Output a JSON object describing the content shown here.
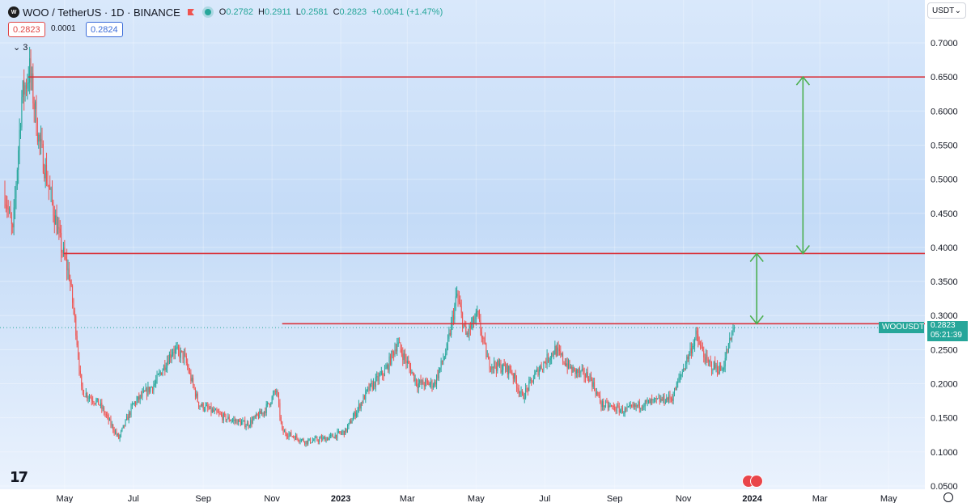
{
  "header": {
    "symbol_title": "WOO / TetherUS · 1D · BINANCE",
    "ohlc": {
      "o_label": "O",
      "o": "0.2782",
      "h_label": "H",
      "h": "0.2911",
      "l_label": "L",
      "l": "0.2581",
      "c_label": "C",
      "c": "0.2823",
      "change": "+0.0041 (+1.47%)"
    },
    "bid": "0.2823",
    "spread": "0.0001",
    "ask": "0.2824",
    "indicators_toggle": "⌄ 3",
    "logo_text": "𝟭𝟳"
  },
  "price_axis": {
    "currency": "USDT",
    "ticks": [
      "0.7000",
      "0.6500",
      "0.6000",
      "0.5500",
      "0.5000",
      "0.4500",
      "0.4000",
      "0.3500",
      "0.3000",
      "0.2500",
      "0.2000",
      "0.1500",
      "0.1000",
      "0.0500"
    ],
    "last_symbol": "WOOUSDT",
    "last_price": "0.2823",
    "countdown": "05:21:39"
  },
  "time_axis": {
    "ticks": [
      "May",
      "Jul",
      "Sep",
      "Nov",
      "2023",
      "Mar",
      "May",
      "Jul",
      "Sep",
      "Nov",
      "2024",
      "Mar",
      "May"
    ]
  },
  "colors": {
    "up": "#26a69a",
    "down": "#ef5350",
    "level_line": "#d9343d",
    "arrow": "#4caf50"
  },
  "chart_data": {
    "type": "candlestick",
    "title": "WOO / TetherUS · 1D · BINANCE",
    "xlabel": "",
    "ylabel": "",
    "ylim": [
      0.05,
      0.72
    ],
    "x_range": [
      "2022-03-09",
      "2024-05-31"
    ],
    "grid": true,
    "anchors": [
      [
        "2022-03-09",
        0.48
      ],
      [
        "2022-03-16",
        0.42
      ],
      [
        "2022-03-24",
        0.62
      ],
      [
        "2022-03-31",
        0.66
      ],
      [
        "2022-04-08",
        0.56
      ],
      [
        "2022-04-18",
        0.48
      ],
      [
        "2022-04-28",
        0.4
      ],
      [
        "2022-05-05",
        0.36
      ],
      [
        "2022-05-11",
        0.28
      ],
      [
        "2022-05-16",
        0.19
      ],
      [
        "2022-06-01",
        0.17
      ],
      [
        "2022-06-18",
        0.12
      ],
      [
        "2022-07-01",
        0.17
      ],
      [
        "2022-07-20",
        0.2
      ],
      [
        "2022-08-05",
        0.25
      ],
      [
        "2022-08-15",
        0.24
      ],
      [
        "2022-08-28",
        0.17
      ],
      [
        "2022-09-20",
        0.15
      ],
      [
        "2022-10-10",
        0.14
      ],
      [
        "2022-10-25",
        0.16
      ],
      [
        "2022-11-05",
        0.19
      ],
      [
        "2022-11-10",
        0.13
      ],
      [
        "2022-12-01",
        0.115
      ],
      [
        "2022-12-20",
        0.12
      ],
      [
        "2023-01-05",
        0.13
      ],
      [
        "2023-01-25",
        0.19
      ],
      [
        "2023-02-10",
        0.22
      ],
      [
        "2023-02-20",
        0.26
      ],
      [
        "2023-03-10",
        0.2
      ],
      [
        "2023-03-25",
        0.2
      ],
      [
        "2023-04-05",
        0.25
      ],
      [
        "2023-04-14",
        0.33
      ],
      [
        "2023-04-22",
        0.27
      ],
      [
        "2023-05-02",
        0.3
      ],
      [
        "2023-05-12",
        0.23
      ],
      [
        "2023-06-01",
        0.22
      ],
      [
        "2023-06-11",
        0.18
      ],
      [
        "2023-06-25",
        0.22
      ],
      [
        "2023-07-10",
        0.25
      ],
      [
        "2023-07-25",
        0.22
      ],
      [
        "2023-08-10",
        0.21
      ],
      [
        "2023-08-20",
        0.17
      ],
      [
        "2023-09-10",
        0.16
      ],
      [
        "2023-09-25",
        0.17
      ],
      [
        "2023-10-10",
        0.175
      ],
      [
        "2023-10-22",
        0.18
      ],
      [
        "2023-11-05",
        0.24
      ],
      [
        "2023-11-12",
        0.27
      ],
      [
        "2023-11-22",
        0.23
      ],
      [
        "2023-12-05",
        0.22
      ],
      [
        "2023-12-12",
        0.26
      ],
      [
        "2023-12-16",
        0.2823
      ]
    ],
    "horizontal_lines": [
      {
        "price": 0.65,
        "from": "2022-03-30"
      },
      {
        "price": 0.391,
        "from": "2022-04-30"
      },
      {
        "price": 0.288,
        "from": "2022-11-10"
      }
    ],
    "arrows": [
      {
        "date": "2024-02-15",
        "from": 0.391,
        "to": 0.65
      },
      {
        "date": "2024-01-05",
        "from": 0.288,
        "to": 0.391
      }
    ],
    "last_price": 0.2823
  }
}
